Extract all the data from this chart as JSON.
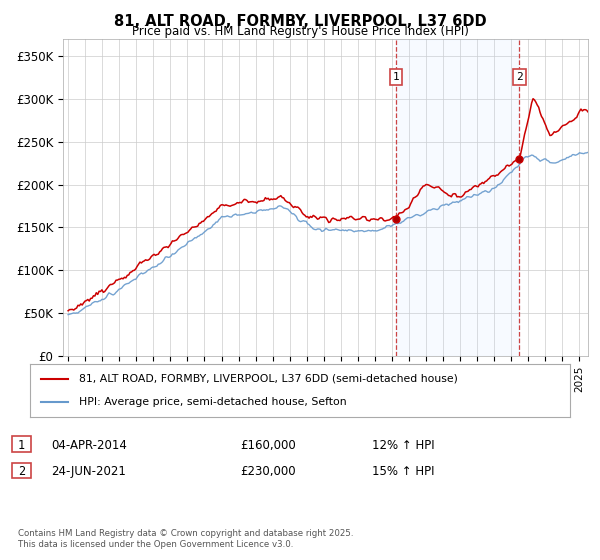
{
  "title": "81, ALT ROAD, FORMBY, LIVERPOOL, L37 6DD",
  "subtitle": "Price paid vs. HM Land Registry's House Price Index (HPI)",
  "ylabel_ticks": [
    "£0",
    "£50K",
    "£100K",
    "£150K",
    "£200K",
    "£250K",
    "£300K",
    "£350K"
  ],
  "ytick_values": [
    0,
    50000,
    100000,
    150000,
    200000,
    250000,
    300000,
    350000
  ],
  "ylim": [
    0,
    370000
  ],
  "xlim_start": 1994.7,
  "xlim_end": 2025.5,
  "legend_line1": "81, ALT ROAD, FORMBY, LIVERPOOL, L37 6DD (semi-detached house)",
  "legend_line2": "HPI: Average price, semi-detached house, Sefton",
  "sale1_date": "04-APR-2014",
  "sale1_price": "£160,000",
  "sale1_hpi": "12% ↑ HPI",
  "sale1_x": 2014.25,
  "sale2_date": "24-JUN-2021",
  "sale2_price": "£230,000",
  "sale2_hpi": "15% ↑ HPI",
  "sale2_x": 2021.48,
  "copyright": "Contains HM Land Registry data © Crown copyright and database right 2025.\nThis data is licensed under the Open Government Licence v3.0.",
  "red_color": "#cc0000",
  "blue_color": "#6699cc",
  "blue_fill": "#ddeeff",
  "bg_color": "#ffffff",
  "grid_color": "#cccccc",
  "vline_color": "#cc4444"
}
